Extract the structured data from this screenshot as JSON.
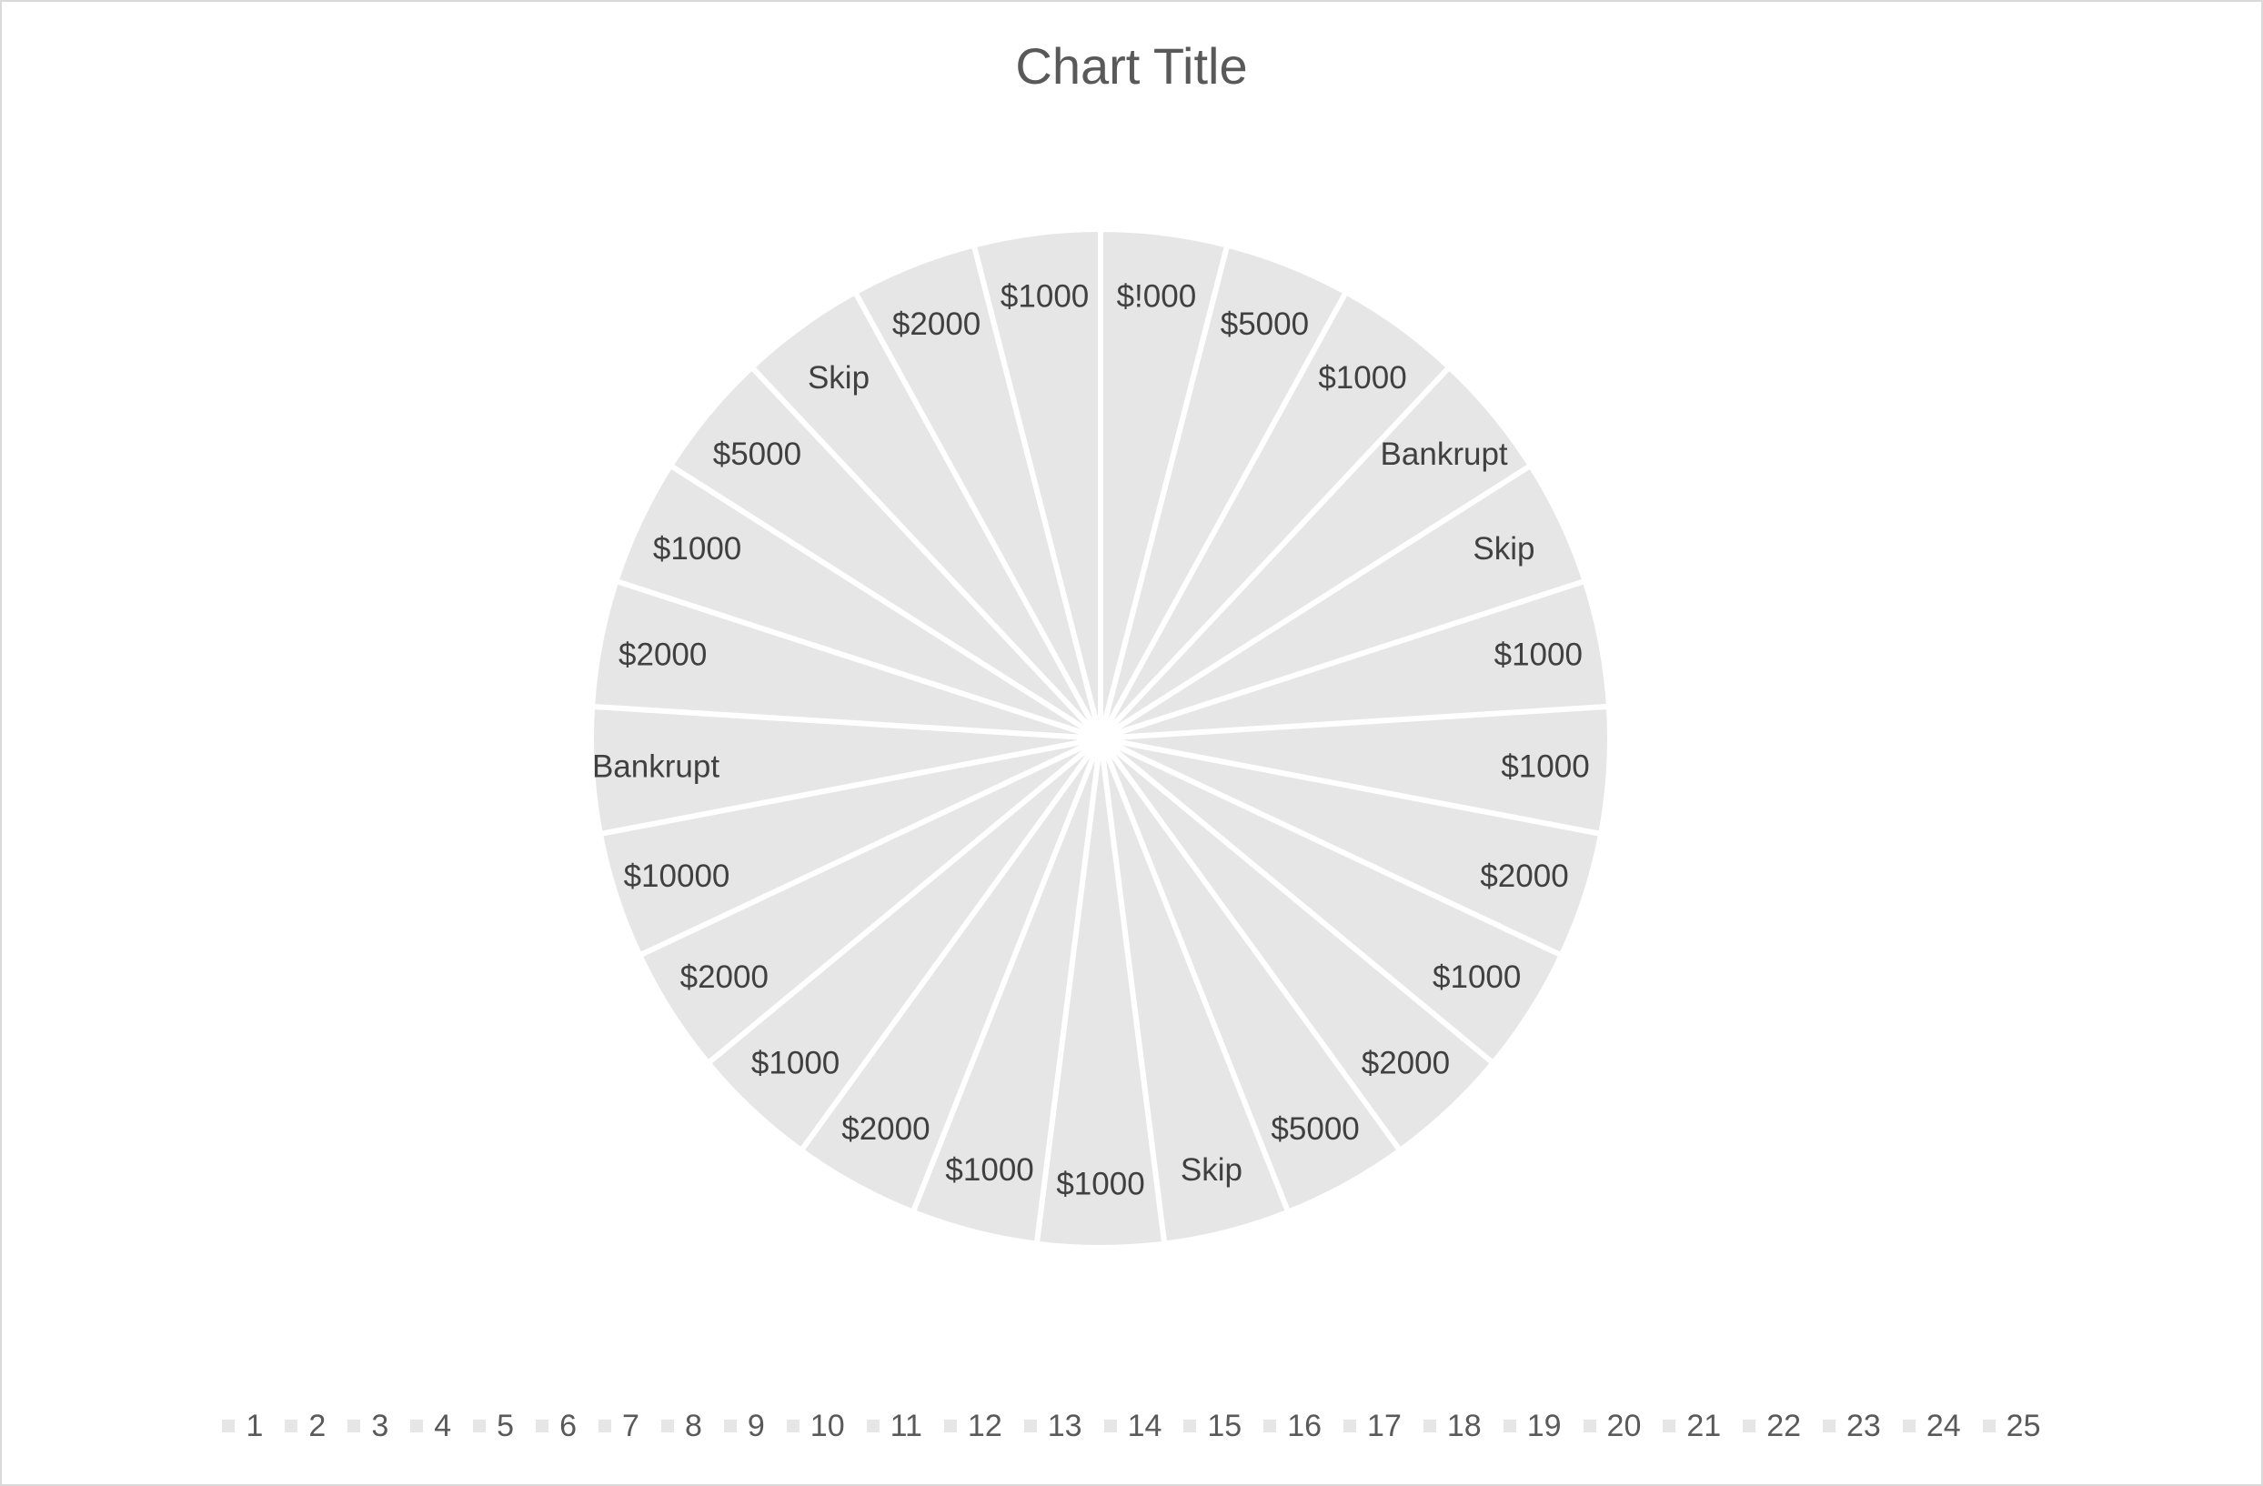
{
  "chart_data": {
    "type": "pie",
    "title": "Chart Title",
    "categories": [
      "1",
      "2",
      "3",
      "4",
      "5",
      "6",
      "7",
      "8",
      "9",
      "10",
      "11",
      "12",
      "13",
      "14",
      "15",
      "16",
      "17",
      "18",
      "19",
      "20",
      "21",
      "22",
      "23",
      "24",
      "25"
    ],
    "values": [
      1,
      1,
      1,
      1,
      1,
      1,
      1,
      1,
      1,
      1,
      1,
      1,
      1,
      1,
      1,
      1,
      1,
      1,
      1,
      1,
      1,
      1,
      1,
      1,
      1
    ],
    "data_labels": [
      "$!000",
      "$5000",
      "$1000",
      "Bankrupt",
      "Skip",
      "$1000",
      "$1000",
      "$2000",
      "$1000",
      "$2000",
      "$5000",
      "Skip",
      "$1000",
      "$1000",
      "$2000",
      "$1000",
      "$2000",
      "$10000",
      "Bankrupt",
      "$2000",
      "$1000",
      "$5000",
      "Skip",
      "$2000",
      "$1000"
    ],
    "legend_position": "bottom",
    "slice_color": "#e6e6e6",
    "border_color": "#ffffff",
    "label_color": "#404040"
  }
}
